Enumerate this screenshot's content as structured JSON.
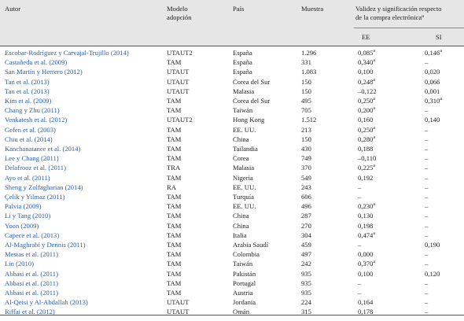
{
  "table": {
    "header": {
      "autor": "Autor",
      "modelo": [
        "Modelo",
        "adopción"
      ],
      "pais": "País",
      "muestra": "Muestra",
      "validez": [
        "Validez y significación respecto",
        "de la compra electrónica"
      ],
      "validez_sup": "a",
      "ee": "EE",
      "si": "SI"
    },
    "rows": [
      [
        "Escobar-Rodríguez y Carvajal-Trujillo (2014)",
        "UTAUT2",
        "España",
        "1.296",
        {
          "text": "0,085",
          "sup": "a"
        },
        {
          "text": "0,146",
          "sup": "a"
        }
      ],
      [
        "Castañeda et al. (2009)",
        "TAM",
        "España",
        "331",
        {
          "text": "0,340",
          "sup": "a"
        },
        {
          "text": "–"
        }
      ],
      [
        "San Martín y Herrero (2012)",
        "UTAUT",
        "España",
        "1.083",
        {
          "text": "0,100"
        },
        {
          "text": "0,020"
        }
      ],
      [
        "Tan et al. (2013)",
        "UTAUT",
        "Corea del Sur",
        "150",
        {
          "text": "0,248",
          "sup": "a"
        },
        {
          "text": "0,066"
        }
      ],
      [
        "Tan et al. (2013)",
        "UTAUT",
        "Malasia",
        "150",
        {
          "text": "–0,122"
        },
        {
          "text": "0,001"
        }
      ],
      [
        "Kim et al. (2009)",
        "TAM",
        "Corea del Sur",
        "495",
        {
          "text": "0,250",
          "sup": "a"
        },
        {
          "text": "0,310",
          "sup": "a"
        }
      ],
      [
        "Chang y Zhu (2011)",
        "TAM",
        "Taiwán",
        "705",
        {
          "text": "0,200",
          "sup": "a"
        },
        {
          "text": "–"
        }
      ],
      [
        "Venkatesh et al. (2012)",
        "UTAUT2",
        "Hong Kong",
        "1.512",
        {
          "text": "0,160"
        },
        {
          "text": "0,140"
        }
      ],
      [
        "Gefen et al. (2003)",
        "TAM",
        "EE. UU.",
        "213",
        {
          "text": "0,250",
          "sup": "a"
        },
        {
          "text": "–"
        }
      ],
      [
        "Chiu et al. (2014)",
        "TAM",
        "China",
        "150",
        {
          "text": "0,280",
          "sup": "a"
        },
        {
          "text": "–"
        }
      ],
      [
        "Kanchanatanee et al. (2014)",
        "TAM",
        "Tailandia",
        "430",
        {
          "text": "0,188"
        },
        {
          "text": "–"
        }
      ],
      [
        "Lee y Chang (2011)",
        "TAM",
        "Corea",
        "749",
        {
          "text": "–0,110"
        },
        {
          "text": "–"
        }
      ],
      [
        "Delafrooz et al. (2011)",
        "TRA",
        "Malasia",
        "370",
        {
          "text": "0,225",
          "sup": "a"
        },
        {
          "text": "–"
        }
      ],
      [
        "Ayo et al. (2011)",
        "TAM",
        "Nigeria",
        "549",
        {
          "text": "0,192"
        },
        {
          "text": "–"
        }
      ],
      [
        "Sheng y Zolfagharian (2014)",
        "RA",
        "EE. UU.",
        "243",
        {
          "text": "–"
        },
        {
          "text": "–"
        }
      ],
      [
        "Çelik y Yilmaz (2011)",
        "TAM",
        "Turquía",
        "606",
        {
          "text": "–"
        },
        {
          "text": "–"
        }
      ],
      [
        "Palvia (2009)",
        "TAM",
        "EE. UU.",
        "496",
        {
          "text": "0,230",
          "sup": "a"
        },
        {
          "text": "–"
        }
      ],
      [
        "Li y Tang (2010)",
        "TAM",
        "China",
        "287",
        {
          "text": "0,130"
        },
        {
          "text": "–"
        }
      ],
      [
        "Yoon (2009)",
        "TAM",
        "China",
        "270",
        {
          "text": "0,198"
        },
        {
          "text": "–"
        }
      ],
      [
        "Capece et al. (2013)",
        "TAM",
        "Italia",
        "304",
        {
          "text": "0,474",
          "sup": "a"
        },
        {
          "text": "–"
        }
      ],
      [
        "Al-Maghrabi y Dennis (2011)",
        "TAM",
        "Arabia Saudí",
        "459",
        {
          "text": "–"
        },
        {
          "text": "0,190"
        }
      ],
      [
        "Mesias et al. (2011)",
        "TAM",
        "Colombia",
        "497",
        {
          "text": "0,000"
        },
        {
          "text": "–"
        }
      ],
      [
        "Lin (2010)",
        "TAM",
        "Taiwán",
        "242",
        {
          "text": "0,370",
          "sup": "a"
        },
        {
          "text": "–"
        }
      ],
      [
        "Abbasi et al. (2011)",
        "TAM",
        "Pakistán",
        "935",
        {
          "text": "0,100"
        },
        {
          "text": "0,120"
        }
      ],
      [
        "Abbasi et al. (2011)",
        "TAM",
        "Portugal",
        "935",
        {
          "text": "–"
        },
        {
          "text": "–"
        }
      ],
      [
        "Abbasi et al. (2011)",
        "TAM",
        "Austria",
        "935",
        {
          "text": "–"
        },
        {
          "text": "–"
        }
      ],
      [
        "Al-Qeisi y Al-Abdallah (2013)",
        "UTAUT",
        "Jordania",
        "224",
        {
          "text": "0,164"
        },
        {
          "text": "–"
        }
      ],
      [
        "Riffai et al. (2012)",
        "UTAUT",
        "Omán",
        "315",
        {
          "text": "0,178"
        },
        {
          "text": "–"
        }
      ]
    ]
  }
}
